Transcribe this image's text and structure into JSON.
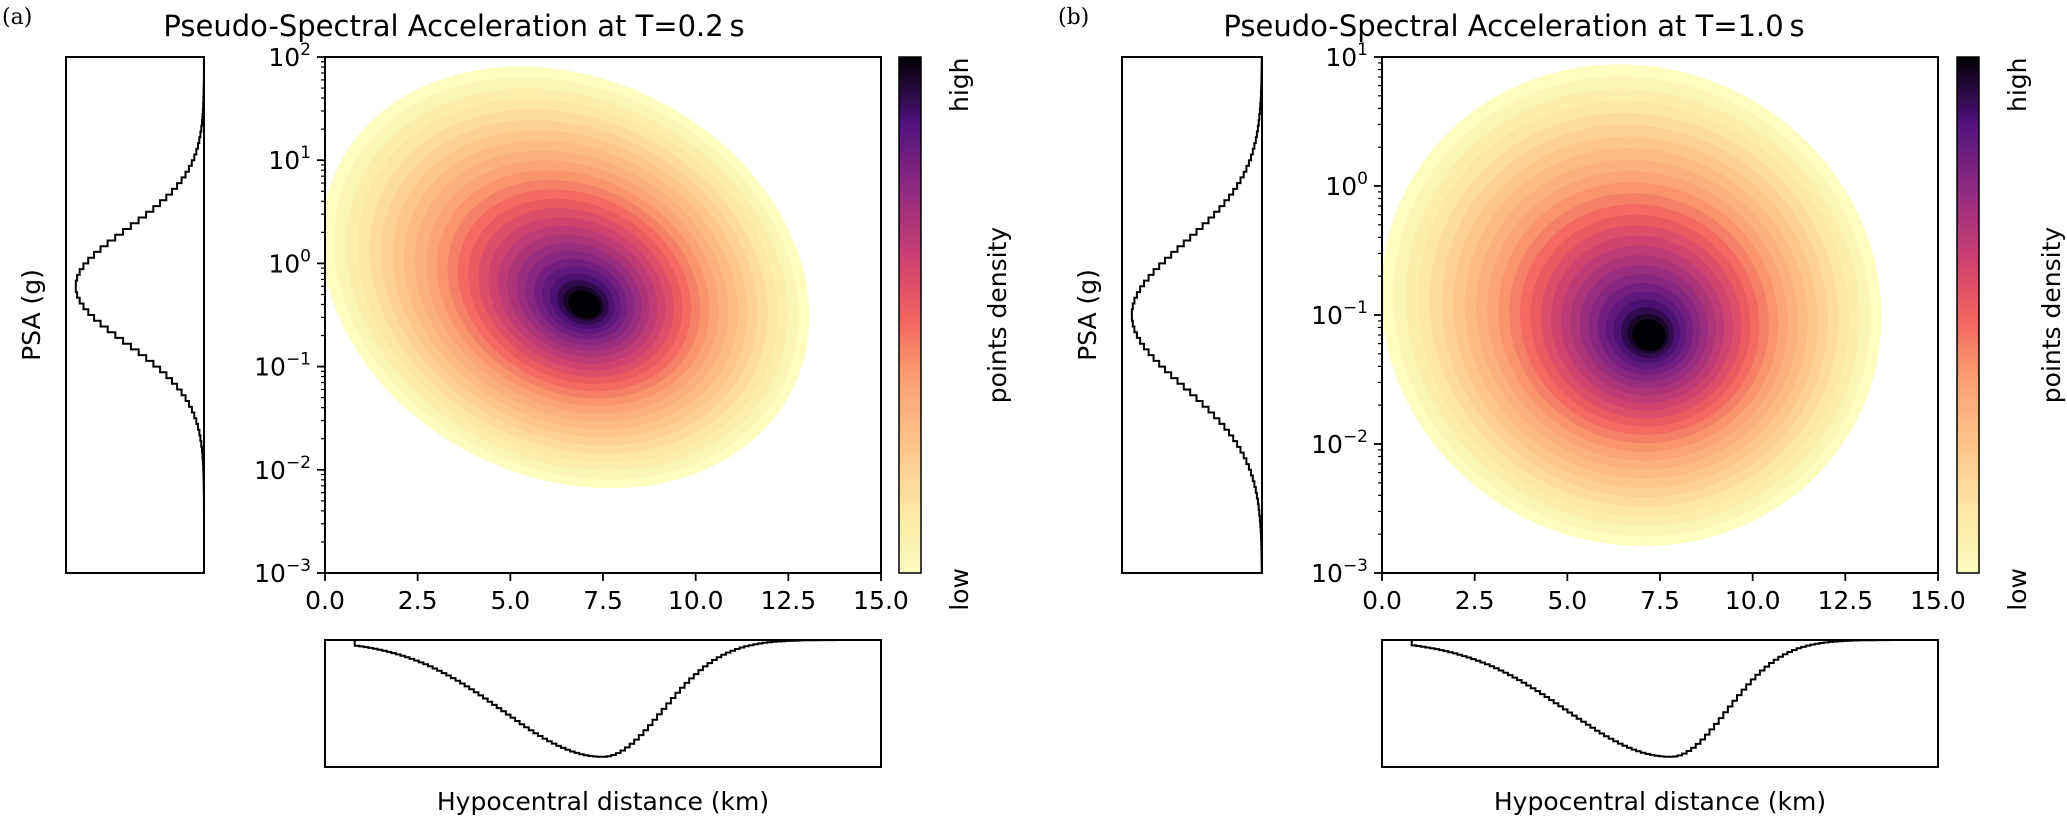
{
  "chart_data": [
    {
      "type": "heatmap",
      "panel_label": "(a)",
      "title": "Pseudo-Spectral Acceleration at T=0.2 s",
      "xlabel": "Hypocentral distance (km)",
      "ylabel": "PSA (g)",
      "xscale": "linear",
      "yscale": "log",
      "xlim": [
        0,
        15
      ],
      "ylim": [
        0.001,
        100
      ],
      "xticks": [
        0,
        2.5,
        5,
        7.5,
        10,
        12.5,
        15
      ],
      "xtick_labels": [
        "0.0",
        "2.5",
        "5.0",
        "7.5",
        "10.0",
        "12.5",
        "15.0"
      ],
      "yticks": [
        0.001,
        0.01,
        0.1,
        1,
        10,
        100
      ],
      "ytick_labels": [
        {
          "base": "10",
          "exp": "−3"
        },
        {
          "base": "10",
          "exp": "−2"
        },
        {
          "base": "10",
          "exp": "−1"
        },
        {
          "base": "10",
          "exp": "0"
        },
        {
          "base": "10",
          "exp": "1"
        },
        {
          "base": "10",
          "exp": "2"
        }
      ],
      "colorbar": {
        "label": "points density",
        "low_label": "low",
        "high_label": "high",
        "colormap": "magma_r"
      },
      "density_peak": {
        "x": 7.0,
        "y": 0.4
      },
      "cloud_extent": {
        "x_min": 0.7,
        "x_max": 13.7,
        "y_min": 0.008,
        "y_max": 60
      },
      "marginal_y": {
        "peak_psa": 0.6,
        "spread_log10": 0.55
      },
      "marginal_x": {
        "peak_distance": 7.5,
        "sigma_left": 2.7,
        "sigma_right": 1.6
      }
    },
    {
      "type": "heatmap",
      "panel_label": "(b)",
      "title": "Pseudo-Spectral Acceleration at T=1.0 s",
      "xlabel": "Hypocentral distance (km)",
      "ylabel": "PSA (g)",
      "xscale": "linear",
      "yscale": "log",
      "xlim": [
        0,
        15
      ],
      "ylim": [
        0.001,
        10
      ],
      "xticks": [
        0,
        2.5,
        5,
        7.5,
        10,
        12.5,
        15
      ],
      "xtick_labels": [
        "0.0",
        "2.5",
        "5.0",
        "7.5",
        "10.0",
        "12.5",
        "15.0"
      ],
      "yticks": [
        0.001,
        0.01,
        0.1,
        1,
        10
      ],
      "ytick_labels": [
        {
          "base": "10",
          "exp": "−3"
        },
        {
          "base": "10",
          "exp": "−2"
        },
        {
          "base": "10",
          "exp": "−1"
        },
        {
          "base": "10",
          "exp": "0"
        },
        {
          "base": "10",
          "exp": "1"
        }
      ],
      "colorbar": {
        "label": "points density",
        "low_label": "low",
        "high_label": "high",
        "colormap": "magma_r"
      },
      "density_peak": {
        "x": 7.2,
        "y": 0.07
      },
      "cloud_extent": {
        "x_min": 0.7,
        "x_max": 13.7,
        "y_min": 0.0012,
        "y_max": 6
      },
      "marginal_y": {
        "peak_psa": 0.1,
        "spread_log10": 0.55
      },
      "marginal_x": {
        "peak_distance": 7.8,
        "sigma_left": 2.8,
        "sigma_right": 1.5
      }
    }
  ]
}
